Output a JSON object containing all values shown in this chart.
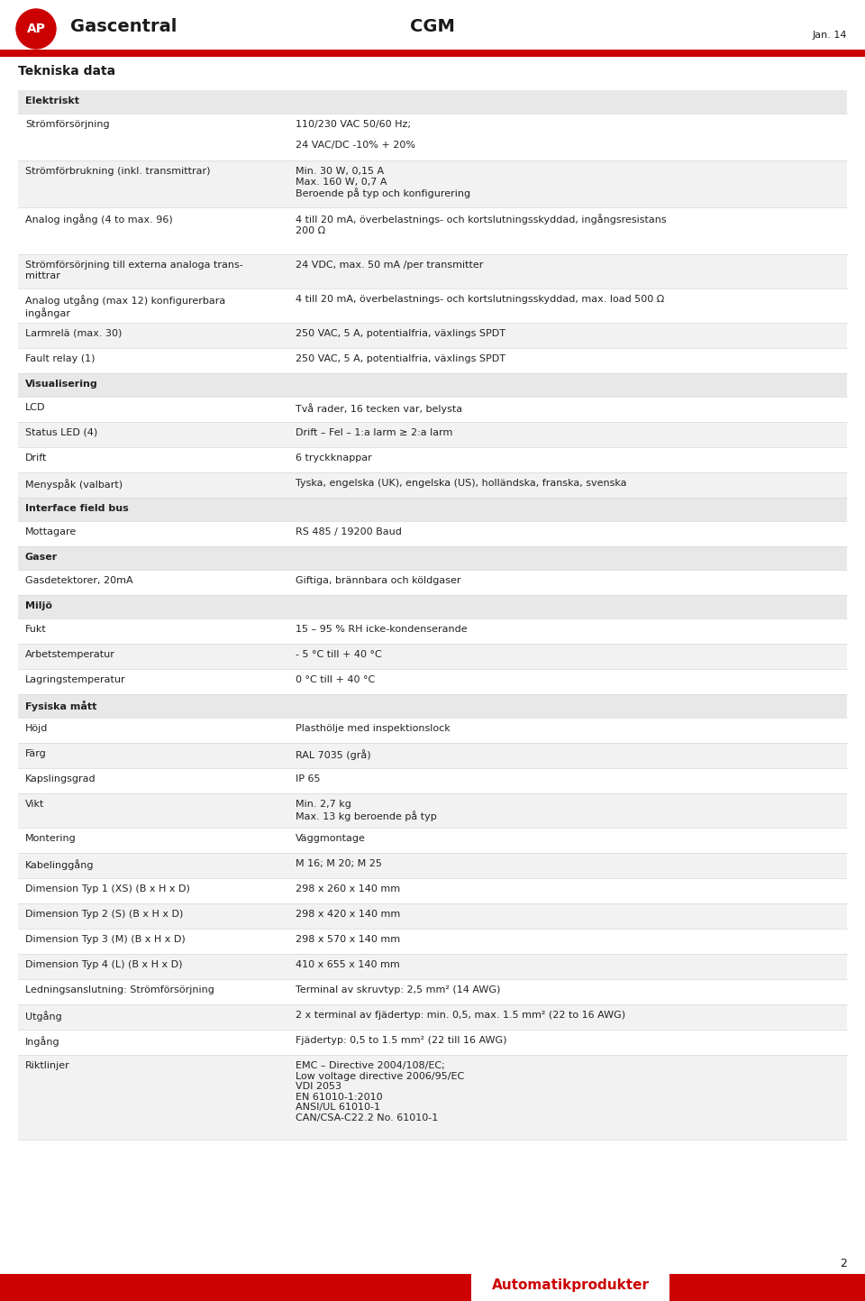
{
  "title_left": "Gascentral",
  "title_center": "CGM",
  "date": "Jan. 14",
  "page_num": "2",
  "footer_text": "Automatikprodukter",
  "section_title": "Tekniska data",
  "header_red_color": "#cc0000",
  "bg_color": "#ffffff",
  "row_alt_color": "#f2f2f2",
  "row_white_color": "#ffffff",
  "section_header_color": "#e8e8e8",
  "text_color": "#222222",
  "rows": [
    {
      "label": "Elektriskt",
      "value": "",
      "type": "section_header"
    },
    {
      "label": "Strömförsörjning",
      "value": "110/230 VAC 50/60 Hz;\n\n24 VAC/DC -10% + 20%",
      "type": "data_white"
    },
    {
      "label": "Strömförbrukning (inkl. transmittrar)",
      "value": "Min. 30 W, 0,15 A\nMax. 160 W, 0,7 A\nBeroende på typ och konfigurering",
      "type": "data_gray"
    },
    {
      "label": "Analog ingång (4 to max. 96)",
      "value": "4 till 20 mA, överbelastnings- och kortslutningsskyddad, ingångsresistans\n200 Ω",
      "type": "data_white"
    },
    {
      "label": "Strömförsörjning till externa analoga trans-\nmittrar",
      "value": "24 VDC, max. 50 mA /per transmitter",
      "type": "data_gray"
    },
    {
      "label": "Analog utgång (max 12) konfigurerbara\ningångar",
      "value": "4 till 20 mA, överbelastnings- och kortslutningsskyddad, max. load 500 Ω",
      "type": "data_white"
    },
    {
      "label": "Larmrelä (max. 30)",
      "value": "250 VAC, 5 A, potentialfria, växlings SPDT",
      "type": "data_gray"
    },
    {
      "label": "Fault relay (1)",
      "value": "250 VAC, 5 A, potentialfria, växlings SPDT",
      "type": "data_white"
    },
    {
      "label": "Visualisering",
      "value": "",
      "type": "section_header"
    },
    {
      "label": "LCD",
      "value": "Två rader, 16 tecken var, belysta",
      "type": "data_white"
    },
    {
      "label": "Status LED (4)",
      "value": "Drift – Fel – 1:a larm ≥ 2:a larm",
      "type": "data_gray"
    },
    {
      "label": "Drift",
      "value": "6 tryckknappar",
      "type": "data_white"
    },
    {
      "label": "Menyspåk (valbart)",
      "value": "Tyska, engelska (UK), engelska (US), holländska, franska, svenska",
      "type": "data_gray"
    },
    {
      "label": "Interface field bus",
      "value": "",
      "type": "section_header"
    },
    {
      "label": "Mottagare",
      "value": "RS 485 / 19200 Baud",
      "type": "data_white"
    },
    {
      "label": "Gaser",
      "value": "",
      "type": "section_header"
    },
    {
      "label": "Gasdetektorer, 20mA",
      "value": "Giftiga, brännbara och köldgaser",
      "type": "data_white"
    },
    {
      "label": "Miljö",
      "value": "",
      "type": "section_header"
    },
    {
      "label": "Fukt",
      "value": "15 – 95 % RH icke-kondenserande",
      "type": "data_white"
    },
    {
      "label": "Arbetstemperatur",
      "value": "- 5 °C till + 40 °C",
      "type": "data_gray"
    },
    {
      "label": "Lagringstemperatur",
      "value": "0 °C till + 40 °C",
      "type": "data_white"
    },
    {
      "label": "Fysiska mått",
      "value": "",
      "type": "section_header"
    },
    {
      "label": "Höjd",
      "value": "Plasthölje med inspektionslock",
      "type": "data_white"
    },
    {
      "label": "Färg",
      "value": "RAL 7035 (grå)",
      "type": "data_gray"
    },
    {
      "label": "Kapslingsgrad",
      "value": "IP 65",
      "type": "data_white"
    },
    {
      "label": "Vikt",
      "value": "Min. 2,7 kg\nMax. 13 kg beroende på typ",
      "type": "data_gray"
    },
    {
      "label": "Montering",
      "value": "Väggmontage",
      "type": "data_white"
    },
    {
      "label": "Kabelinggång",
      "value": "M 16; M 20; M 25",
      "type": "data_gray"
    },
    {
      "label": "Dimension Typ 1 (XS) (B x H x D)",
      "value": "298 x 260 x 140 mm",
      "type": "data_white"
    },
    {
      "label": "Dimension Typ 2 (S) (B x H x D)",
      "value": "298 x 420 x 140 mm",
      "type": "data_gray"
    },
    {
      "label": "Dimension Typ 3 (M) (B x H x D)",
      "value": "298 x 570 x 140 mm",
      "type": "data_white"
    },
    {
      "label": "Dimension Typ 4 (L) (B x H x D)",
      "value": "410 x 655 x 140 mm",
      "type": "data_gray"
    },
    {
      "label": "Ledningsanslutning: Strömförsörjning",
      "value": "Terminal av skruvtyp: 2,5 mm² (14 AWG)",
      "type": "data_white"
    },
    {
      "label": "Utgång",
      "value": "2 x terminal av fjädertyp: min. 0,5, max. 1.5 mm² (22 to 16 AWG)",
      "type": "data_gray"
    },
    {
      "label": "Ingång",
      "value": "Fjädertyp: 0,5 to 1.5 mm² (22 till 16 AWG)",
      "type": "data_white"
    },
    {
      "label": "Riktlinjer",
      "value": "EMC – Directive 2004/108/EC;\nLow voltage directive 2006/95/EC\nVDI 2053\nEN 61010-1:2010\nANSI/UL 61010-1\nCAN/CSA-C22.2 No. 61010-1",
      "type": "data_gray"
    }
  ]
}
